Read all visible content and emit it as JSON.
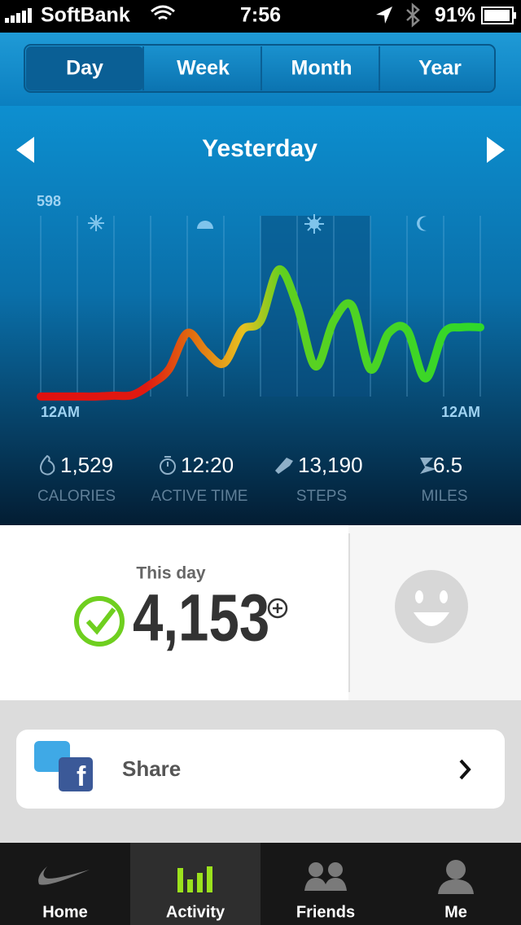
{
  "status_bar": {
    "carrier": "SoftBank",
    "time": "7:56",
    "battery": "91%"
  },
  "period_tabs": [
    "Day",
    "Week",
    "Month",
    "Year"
  ],
  "date_title": "Yesterday",
  "activity_chart": {
    "type": "line",
    "ylim": [
      0,
      598
    ],
    "yticks": [
      598
    ],
    "x_labels": [
      "12AM",
      "12AM"
    ],
    "values": [
      0,
      0,
      0,
      0,
      3,
      5,
      40,
      90,
      210,
      150,
      110,
      220,
      250,
      420,
      300,
      100,
      250,
      300,
      90,
      210,
      220,
      60,
      210,
      229,
      229
    ]
  },
  "stats": [
    {
      "value": "1,529",
      "label": "CALORIES"
    },
    {
      "value": "12:20",
      "label": "ACTIVE TIME"
    },
    {
      "value": "13,190",
      "label": "STEPS"
    },
    {
      "value": "6.5",
      "label": "MILES"
    }
  ],
  "summary": {
    "label": "This day",
    "value": "4,153"
  },
  "share": {
    "label": "Share"
  },
  "tab_bar": [
    "Home",
    "Activity",
    "Friends",
    "Me"
  ]
}
